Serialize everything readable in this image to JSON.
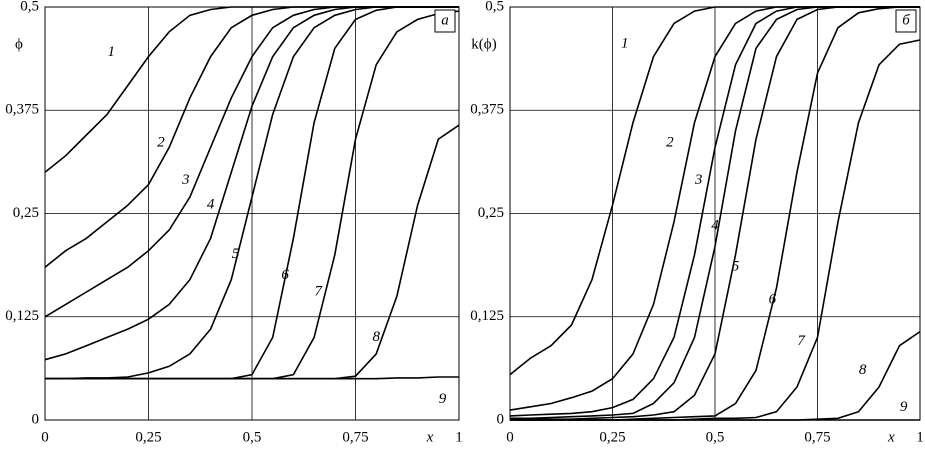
{
  "chart_data": [
    {
      "type": "line",
      "panel_label": "а",
      "ylabel": "ϕ",
      "xlabel": "x",
      "x": [
        0,
        0.05,
        0.1,
        0.15,
        0.2,
        0.25,
        0.3,
        0.35,
        0.4,
        0.45,
        0.5,
        0.55,
        0.6,
        0.65,
        0.7,
        0.75,
        0.8,
        0.85,
        0.9,
        0.95,
        1
      ],
      "xlim": [
        0,
        1
      ],
      "ylim": [
        0,
        0.5
      ],
      "xticks": [
        0,
        {
          "value": 0.25,
          "label": "0,25"
        },
        {
          "value": 0.5,
          "label": "0,5"
        },
        {
          "value": 0.75,
          "label": "0,75"
        },
        1
      ],
      "yticks": [
        0,
        {
          "value": 0.125,
          "label": "0,125"
        },
        {
          "value": 0.25,
          "label": "0,25"
        },
        {
          "value": 0.375,
          "label": "0,375"
        },
        {
          "value": 0.5,
          "label": "0,5"
        }
      ],
      "grid": true,
      "series": [
        {
          "name": "1",
          "color": "#000",
          "values": [
            0.3,
            0.32,
            0.345,
            0.37,
            0.405,
            0.44,
            0.47,
            0.49,
            0.497,
            0.5,
            0.5,
            0.5,
            0.5,
            0.5,
            0.5,
            0.5,
            0.5,
            0.5,
            0.5,
            0.5,
            0.5
          ]
        },
        {
          "name": "2",
          "color": "#000",
          "values": [
            0.185,
            0.205,
            0.22,
            0.24,
            0.26,
            0.285,
            0.33,
            0.39,
            0.44,
            0.475,
            0.49,
            0.497,
            0.5,
            0.5,
            0.5,
            0.5,
            0.5,
            0.5,
            0.5,
            0.5,
            0.5
          ]
        },
        {
          "name": "3",
          "color": "#000",
          "values": [
            0.125,
            0.14,
            0.155,
            0.17,
            0.185,
            0.205,
            0.23,
            0.27,
            0.33,
            0.39,
            0.44,
            0.475,
            0.49,
            0.497,
            0.5,
            0.5,
            0.5,
            0.5,
            0.5,
            0.5,
            0.5
          ]
        },
        {
          "name": "4",
          "color": "#000",
          "values": [
            0.073,
            0.08,
            0.09,
            0.1,
            0.11,
            0.122,
            0.14,
            0.17,
            0.22,
            0.3,
            0.38,
            0.44,
            0.475,
            0.49,
            0.497,
            0.5,
            0.5,
            0.5,
            0.5,
            0.5,
            0.5
          ]
        },
        {
          "name": "5",
          "color": "#000",
          "values": [
            0.05,
            0.05,
            0.051,
            0.051,
            0.052,
            0.057,
            0.065,
            0.08,
            0.11,
            0.17,
            0.27,
            0.37,
            0.44,
            0.475,
            0.49,
            0.497,
            0.5,
            0.5,
            0.5,
            0.5,
            0.5
          ]
        },
        {
          "name": "6",
          "color": "#000",
          "values": [
            0.05,
            0.05,
            0.05,
            0.05,
            0.05,
            0.05,
            0.05,
            0.05,
            0.05,
            0.05,
            0.055,
            0.1,
            0.22,
            0.36,
            0.45,
            0.485,
            0.496,
            0.5,
            0.5,
            0.5,
            0.5
          ]
        },
        {
          "name": "7",
          "color": "#000",
          "values": [
            0.05,
            0.05,
            0.05,
            0.05,
            0.05,
            0.05,
            0.05,
            0.05,
            0.05,
            0.05,
            0.05,
            0.05,
            0.055,
            0.1,
            0.2,
            0.34,
            0.43,
            0.47,
            0.485,
            0.492,
            0.495
          ]
        },
        {
          "name": "8",
          "color": "#000",
          "values": [
            0.05,
            0.05,
            0.05,
            0.05,
            0.05,
            0.05,
            0.05,
            0.05,
            0.05,
            0.05,
            0.05,
            0.05,
            0.05,
            0.05,
            0.05,
            0.053,
            0.08,
            0.15,
            0.26,
            0.34,
            0.357
          ]
        },
        {
          "name": "9",
          "color": "#000",
          "values": [
            0.05,
            0.05,
            0.05,
            0.05,
            0.05,
            0.05,
            0.05,
            0.05,
            0.05,
            0.05,
            0.05,
            0.05,
            0.05,
            0.05,
            0.05,
            0.05,
            0.05,
            0.051,
            0.051,
            0.052,
            0.052
          ]
        }
      ]
    },
    {
      "type": "line",
      "panel_label": "б",
      "ylabel": "k(ϕ)",
      "xlabel": "x",
      "x": [
        0,
        0.05,
        0.1,
        0.15,
        0.2,
        0.25,
        0.3,
        0.35,
        0.4,
        0.45,
        0.5,
        0.55,
        0.6,
        0.65,
        0.7,
        0.75,
        0.8,
        0.85,
        0.9,
        0.95,
        1
      ],
      "xlim": [
        0,
        1
      ],
      "ylim": [
        0,
        0.5
      ],
      "xticks": [
        0,
        {
          "value": 0.25,
          "label": "0,25"
        },
        {
          "value": 0.5,
          "label": "0,5"
        },
        {
          "value": 0.75,
          "label": "0,75"
        },
        1
      ],
      "yticks": [
        0,
        {
          "value": 0.125,
          "label": "0,125"
        },
        {
          "value": 0.25,
          "label": "0,25"
        },
        {
          "value": 0.375,
          "label": "0,375"
        },
        {
          "value": 0.5,
          "label": "0,5"
        }
      ],
      "grid": true,
      "series": [
        {
          "name": "1",
          "color": "#000",
          "values": [
            0.055,
            0.075,
            0.09,
            0.115,
            0.17,
            0.26,
            0.36,
            0.44,
            0.48,
            0.495,
            0.5,
            0.5,
            0.5,
            0.5,
            0.5,
            0.5,
            0.5,
            0.5,
            0.5,
            0.5,
            0.5
          ]
        },
        {
          "name": "2",
          "color": "#000",
          "values": [
            0.012,
            0.016,
            0.02,
            0.027,
            0.035,
            0.05,
            0.08,
            0.14,
            0.24,
            0.36,
            0.44,
            0.48,
            0.495,
            0.5,
            0.5,
            0.5,
            0.5,
            0.5,
            0.5,
            0.5,
            0.5
          ]
        },
        {
          "name": "3",
          "color": "#000",
          "values": [
            0.005,
            0.006,
            0.007,
            0.008,
            0.01,
            0.015,
            0.025,
            0.05,
            0.1,
            0.2,
            0.33,
            0.43,
            0.48,
            0.495,
            0.5,
            0.5,
            0.5,
            0.5,
            0.5,
            0.5,
            0.5
          ]
        },
        {
          "name": "4",
          "color": "#000",
          "values": [
            0.002,
            0.002,
            0.003,
            0.004,
            0.005,
            0.006,
            0.008,
            0.02,
            0.045,
            0.1,
            0.21,
            0.35,
            0.45,
            0.485,
            0.497,
            0.5,
            0.5,
            0.5,
            0.5,
            0.5,
            0.5
          ]
        },
        {
          "name": "5",
          "color": "#000",
          "values": [
            0.001,
            0.001,
            0.001,
            0.001,
            0.002,
            0.003,
            0.004,
            0.006,
            0.01,
            0.03,
            0.08,
            0.2,
            0.34,
            0.44,
            0.485,
            0.497,
            0.5,
            0.5,
            0.5,
            0.5,
            0.5
          ]
        },
        {
          "name": "6",
          "color": "#000",
          "values": [
            0,
            0,
            0,
            0,
            0,
            0,
            0.001,
            0.002,
            0.003,
            0.004,
            0.005,
            0.02,
            0.06,
            0.16,
            0.3,
            0.42,
            0.475,
            0.493,
            0.498,
            0.5,
            0.5
          ]
        },
        {
          "name": "7",
          "color": "#000",
          "values": [
            0,
            0,
            0,
            0,
            0,
            0,
            0,
            0,
            0,
            0.001,
            0.002,
            0.002,
            0.003,
            0.01,
            0.04,
            0.1,
            0.24,
            0.36,
            0.43,
            0.455,
            0.46
          ]
        },
        {
          "name": "8",
          "color": "#000",
          "values": [
            0,
            0,
            0,
            0,
            0,
            0,
            0,
            0,
            0,
            0,
            0,
            0,
            0,
            0,
            0,
            0.001,
            0.002,
            0.01,
            0.04,
            0.09,
            0.107
          ]
        },
        {
          "name": "9",
          "color": "#000",
          "values": [
            0,
            0,
            0,
            0,
            0,
            0,
            0,
            0,
            0,
            0,
            0,
            0,
            0,
            0,
            0,
            0,
            0,
            0,
            0,
            0,
            0
          ]
        }
      ]
    }
  ]
}
